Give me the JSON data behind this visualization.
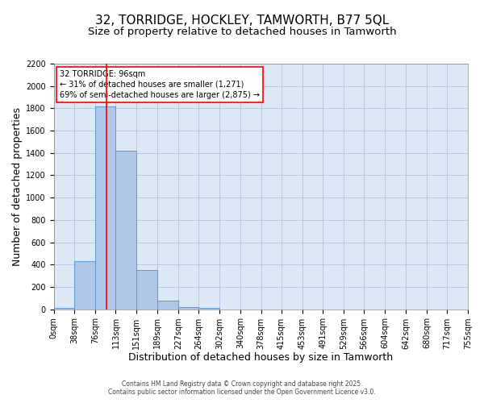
{
  "title1": "32, TORRIDGE, HOCKLEY, TAMWORTH, B77 5QL",
  "title2": "Size of property relative to detached houses in Tamworth",
  "xlabel": "Distribution of detached houses by size in Tamworth",
  "ylabel": "Number of detached properties",
  "bar_values": [
    10,
    430,
    1820,
    1420,
    350,
    75,
    20,
    10,
    0,
    0,
    0,
    0,
    0,
    0,
    0,
    0,
    0,
    0,
    0,
    0
  ],
  "bin_edges": [
    0,
    38,
    76,
    113,
    151,
    189,
    227,
    264,
    302,
    340,
    378,
    415,
    453,
    491,
    529,
    566,
    604,
    642,
    680,
    717,
    755
  ],
  "bin_labels": [
    "0sqm",
    "38sqm",
    "76sqm",
    "113sqm",
    "151sqm",
    "189sqm",
    "227sqm",
    "264sqm",
    "302sqm",
    "340sqm",
    "378sqm",
    "415sqm",
    "453sqm",
    "491sqm",
    "529sqm",
    "566sqm",
    "604sqm",
    "642sqm",
    "680sqm",
    "717sqm",
    "755sqm"
  ],
  "bar_color": "#aec6e8",
  "bar_edge_color": "#5b9bd5",
  "red_line_x": 96,
  "annotation_line1": "32 TORRIDGE: 96sqm",
  "annotation_line2": "← 31% of detached houses are smaller (1,271)",
  "annotation_line3": "69% of semi-detached houses are larger (2,875) →",
  "ylim_max": 2200,
  "yticks": [
    0,
    200,
    400,
    600,
    800,
    1000,
    1200,
    1400,
    1600,
    1800,
    2000,
    2200
  ],
  "grid_color": "#b0c4de",
  "background_color": "#dde8f5",
  "footer_line1": "Contains HM Land Registry data © Crown copyright and database right 2025.",
  "footer_line2": "Contains public sector information licensed under the Open Government Licence v3.0.",
  "title_fontsize": 11,
  "subtitle_fontsize": 9.5,
  "tick_fontsize": 7,
  "axis_label_fontsize": 9,
  "annotation_fontsize": 7,
  "footer_fontsize": 5.5
}
